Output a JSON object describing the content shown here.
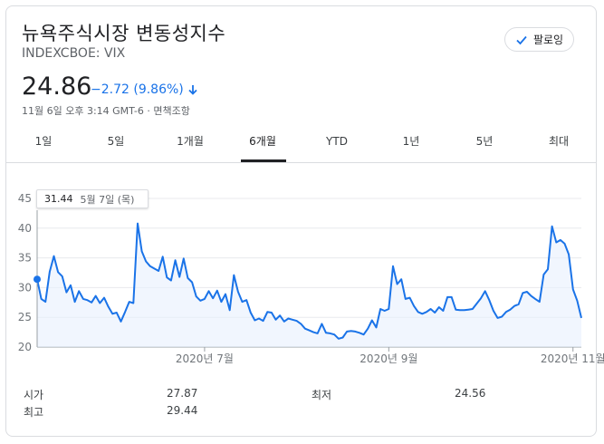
{
  "header": {
    "title": "뉴욕주식시장 변동성지수",
    "ticker": "INDEXCBOE: VIX",
    "follow_label": "팔로잉"
  },
  "quote": {
    "price": "24.86",
    "change": "−2.72 (9.86%)",
    "timestamp": "11월 6일 오후 3:14 GMT-6 · 면책조항",
    "change_color": "#1a73e8"
  },
  "tabs": [
    {
      "label": "1일"
    },
    {
      "label": "5일"
    },
    {
      "label": "1개월"
    },
    {
      "label": "6개월"
    },
    {
      "label": "YTD"
    },
    {
      "label": "1년"
    },
    {
      "label": "5년"
    },
    {
      "label": "최대"
    }
  ],
  "active_tab": "6개월",
  "tooltip": {
    "value": "31.44",
    "date": "5월 7일 (목)"
  },
  "chart_data": {
    "type": "area",
    "line_color": "#1a73e8",
    "fill_color": "#e8f0fe",
    "ylim": [
      20,
      45
    ],
    "y_ticks": [
      "45",
      "40",
      "35",
      "30",
      "25",
      "20"
    ],
    "y_tick_values": [
      45,
      40,
      35,
      30,
      25,
      20
    ],
    "x_ticks": [
      {
        "label": "2020년 7월",
        "index": 40
      },
      {
        "label": "2020년 9월",
        "index": 84
      },
      {
        "label": "2020년 11월",
        "index": 128
      }
    ],
    "grid": true,
    "values": [
      31.4,
      28.1,
      27.6,
      32.7,
      35.3,
      32.6,
      31.9,
      29.2,
      30.4,
      27.6,
      29.4,
      28.1,
      27.9,
      27.5,
      28.6,
      27.4,
      28.3,
      26.8,
      25.6,
      25.8,
      24.3,
      25.9,
      27.6,
      27.4,
      40.8,
      36.1,
      34.4,
      33.6,
      33.2,
      32.8,
      35.2,
      31.7,
      31.2,
      34.6,
      31.8,
      34.9,
      31.6,
      30.9,
      28.5,
      27.8,
      28.1,
      29.4,
      28.2,
      29.5,
      27.6,
      28.9,
      26.2,
      32.1,
      29.3,
      27.6,
      27.9,
      25.8,
      24.5,
      24.8,
      24.4,
      25.9,
      25.8,
      24.6,
      25.3,
      24.3,
      24.8,
      24.6,
      24.4,
      23.9,
      23.1,
      22.8,
      22.5,
      22.3,
      23.9,
      22.4,
      22.3,
      22.1,
      21.4,
      21.6,
      22.6,
      22.7,
      22.6,
      22.4,
      22.1,
      23.1,
      24.5,
      23.3,
      26.4,
      26.1,
      26.4,
      33.6,
      30.6,
      31.4,
      28.1,
      28.3,
      26.9,
      25.9,
      25.6,
      25.9,
      26.4,
      25.8,
      26.7,
      26.1,
      28.4,
      28.4,
      26.3,
      26.2,
      26.2,
      26.3,
      26.4,
      27.3,
      28.2,
      29.4,
      27.9,
      26.1,
      24.9,
      25.1,
      25.9,
      26.3,
      26.9,
      27.2,
      29.1,
      29.3,
      28.6,
      28.1,
      27.6,
      32.2,
      33.1,
      40.3,
      37.6,
      38.0,
      37.4,
      35.6,
      29.7,
      27.8,
      24.9
    ],
    "point_count_note": ""
  },
  "stats": [
    {
      "label": "시가",
      "value": "27.87"
    },
    {
      "label": "최저",
      "value": "24.56"
    },
    {
      "label": "최고",
      "value": "29.44"
    }
  ]
}
